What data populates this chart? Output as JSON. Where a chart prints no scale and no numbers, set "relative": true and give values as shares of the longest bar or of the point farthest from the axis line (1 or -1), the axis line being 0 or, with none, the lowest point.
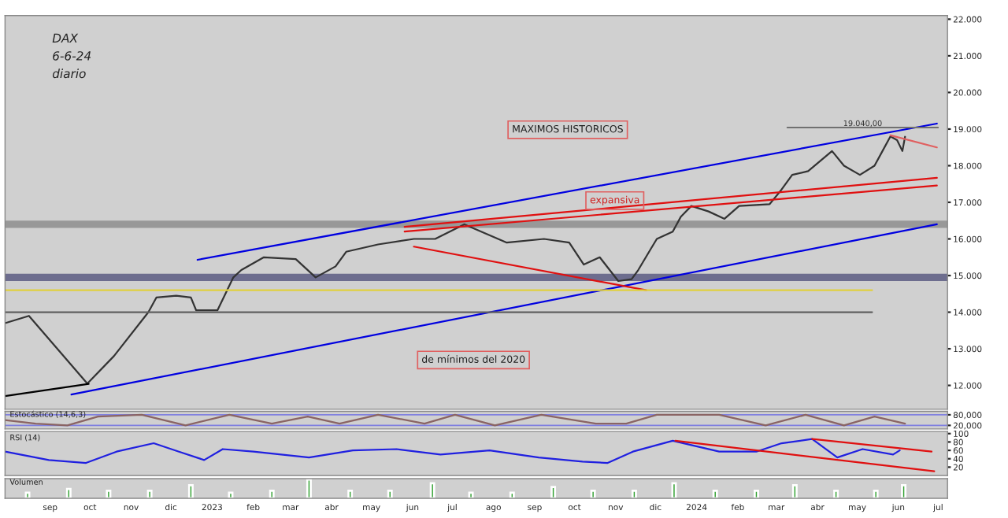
{
  "chart_data": [
    {
      "type": "line",
      "xlim": [
        "2022-07-29",
        "2024-07-08"
      ],
      "ylim": [
        11350,
        22100
      ],
      "yticks": [
        {
          "value": 12000,
          "label": "12.000"
        },
        {
          "value": 13000,
          "label": "13.000"
        },
        {
          "value": 14000,
          "label": "14.000"
        },
        {
          "value": 15000,
          "label": "15.000"
        },
        {
          "value": 16000,
          "label": "16.000"
        },
        {
          "value": 17000,
          "label": "17.000"
        },
        {
          "value": 18000,
          "label": "18.000"
        },
        {
          "value": 19000,
          "label": "19.000"
        },
        {
          "value": 20000,
          "label": "20.000"
        },
        {
          "value": 21000,
          "label": "21.000"
        },
        {
          "value": 22000,
          "label": "22.000"
        }
      ],
      "tick_labels": "y",
      "grid": false,
      "legend": false,
      "series": [
        {
          "color": "#333333",
          "x": [
            "2022-07-29",
            "2022-08-16",
            "2022-09-29",
            "2022-10-19",
            "2022-11-14",
            "2022-11-20",
            "2022-12-05",
            "2022-12-16",
            "2022-12-20",
            "2023-01-05",
            "2023-01-17",
            "2023-01-23",
            "2023-02-09",
            "2023-03-05",
            "2023-03-20",
            "2023-04-04",
            "2023-04-12",
            "2023-05-06",
            "2023-06-02",
            "2023-06-18",
            "2023-07-10",
            "2023-08-11",
            "2023-09-08",
            "2023-09-27",
            "2023-10-08",
            "2023-10-20",
            "2023-11-03",
            "2023-11-13",
            "2023-11-18",
            "2023-11-27",
            "2023-12-02",
            "2023-12-14",
            "2023-12-20",
            "2023-12-28",
            "2024-01-10",
            "2024-01-22",
            "2024-02-02",
            "2024-02-25",
            "2024-03-05",
            "2024-03-13",
            "2024-03-25",
            "2024-04-12",
            "2024-04-21",
            "2024-05-03",
            "2024-05-14",
            "2024-05-20",
            "2024-05-26",
            "2024-05-31",
            "2024-06-04",
            "2024-06-06"
          ],
          "values": [
            13700,
            13900,
            12050,
            12800,
            14000,
            14400,
            14450,
            14400,
            14050,
            14050,
            14950,
            15150,
            15500,
            15450,
            14950,
            15250,
            15650,
            15850,
            16000,
            16000,
            16400,
            15900,
            16000,
            15900,
            15300,
            15500,
            14850,
            14900,
            15150,
            15700,
            16000,
            16200,
            16600,
            16900,
            16750,
            16550,
            16900,
            16950,
            17350,
            17750,
            17850,
            18400,
            18000,
            17750,
            18000,
            18400,
            18800,
            18700,
            18400,
            18790
          ]
        },
        {
          "color": "#0000e0",
          "x": [
            "2022-12-21",
            "2024-06-30"
          ],
          "values": [
            15430,
            19150
          ]
        },
        {
          "color": "#0000e0",
          "x": [
            "2022-09-17",
            "2024-06-30"
          ],
          "values": [
            11750,
            16400
          ]
        },
        {
          "color": "#e01010",
          "x": [
            "2023-05-26",
            "2024-06-30"
          ],
          "values": [
            16330,
            17670
          ]
        },
        {
          "color": "#e01010",
          "x": [
            "2023-05-26",
            "2024-06-30"
          ],
          "values": [
            16200,
            17460
          ]
        },
        {
          "color": "#e01010",
          "x": [
            "2023-06-02",
            "2023-11-24"
          ],
          "values": [
            15790,
            14600
          ]
        },
        {
          "color": "#000000",
          "x": [
            "2022-07-29",
            "2022-09-30"
          ],
          "values": [
            11710,
            12040
          ]
        },
        {
          "color": "#e06060",
          "x": [
            "2024-05-26",
            "2024-06-30"
          ],
          "values": [
            18830,
            18500
          ]
        }
      ],
      "ref_lines": [
        {
          "axis": "y",
          "value": 19040,
          "label": "19.040,00",
          "color": "#707070"
        },
        {
          "axis": "y",
          "value": 14000,
          "color": "#606060"
        },
        {
          "axis": "y",
          "value": 14600,
          "color": "#e0d040"
        }
      ],
      "bands": [
        {
          "axis": "y",
          "from": 16300,
          "to": 16500,
          "color": "#8e8e8e"
        },
        {
          "axis": "y",
          "from": 14850,
          "to": 15050,
          "color": "#5c5c82"
        }
      ],
      "annotations": [
        "DAX",
        "6-6-24",
        "diario",
        "MAXIMOS HISTORICOS",
        "expansiva",
        "de mínimos del 2020"
      ]
    },
    {
      "type": "line",
      "xlim": [
        "2022-07-29",
        "2024-07-08"
      ],
      "ylim": [
        0,
        100
      ],
      "yticks": [
        {
          "value": 80,
          "label": "80,000"
        },
        {
          "value": 20,
          "label": "20,000"
        }
      ],
      "tick_labels": "y",
      "grid": "y",
      "legend": false,
      "series": [
        {
          "color": "#8a6464",
          "x": [
            "2022-07-29",
            "2022-08-21",
            "2022-09-14",
            "2022-10-07",
            "2022-11-09",
            "2022-12-12",
            "2023-01-14",
            "2023-02-15",
            "2023-03-14",
            "2023-04-07",
            "2023-05-06",
            "2023-06-10",
            "2023-07-03",
            "2023-08-02",
            "2023-09-06",
            "2023-10-17",
            "2023-11-09",
            "2023-12-02",
            "2024-01-18",
            "2024-02-22",
            "2024-03-23",
            "2024-04-21",
            "2024-05-14",
            "2024-06-06"
          ],
          "values": [
            50,
            30,
            20,
            70,
            80,
            20,
            80,
            30,
            70,
            30,
            80,
            30,
            80,
            20,
            80,
            30,
            30,
            80,
            80,
            20,
            80,
            20,
            70,
            30
          ]
        }
      ],
      "annotations": [
        "Estocástico (14,6,3)"
      ]
    },
    {
      "type": "line",
      "xlim": [
        "2022-07-29",
        "2024-07-08"
      ],
      "ylim": [
        0,
        105
      ],
      "yticks": [
        20,
        40,
        60,
        80,
        100
      ],
      "tick_labels": "y",
      "grid": false,
      "legend": false,
      "series": [
        {
          "color": "#2020e0",
          "x": [
            "2022-07-29",
            "2022-08-31",
            "2022-09-28",
            "2022-10-21",
            "2022-11-18",
            "2022-12-07",
            "2022-12-26",
            "2023-01-09",
            "2023-02-01",
            "2023-03-15",
            "2023-04-17",
            "2023-05-20",
            "2023-06-22",
            "2023-07-29",
            "2023-09-04",
            "2023-10-07",
            "2023-10-26",
            "2023-11-14",
            "2023-12-14",
            "2024-01-18",
            "2024-02-15",
            "2024-03-05",
            "2024-03-28",
            "2024-04-16",
            "2024-05-05",
            "2024-05-28",
            "2024-06-02"
          ],
          "values": [
            57,
            37,
            30,
            57,
            77,
            57,
            37,
            63,
            57,
            43,
            60,
            63,
            50,
            60,
            43,
            33,
            30,
            57,
            83,
            57,
            57,
            77,
            87,
            43,
            63,
            50,
            60
          ]
        },
        {
          "color": "#e01010",
          "x": [
            "2023-12-16",
            "2024-06-28"
          ],
          "values": [
            83,
            10
          ]
        },
        {
          "color": "#e01010",
          "x": [
            "2024-03-28",
            "2024-06-26"
          ],
          "values": [
            87,
            57
          ]
        }
      ],
      "annotations": [
        "RSI (14)"
      ]
    },
    {
      "type": "bar",
      "relative": true,
      "xlim": [
        "2022-07-29",
        "2024-07-08"
      ],
      "tick_labels": "x",
      "grid": false,
      "legend": false,
      "xticks": [
        {
          "value": "2022-09-01",
          "label": "sep"
        },
        {
          "value": "2022-10-01",
          "label": "oct"
        },
        {
          "value": "2022-11-01",
          "label": "nov"
        },
        {
          "value": "2022-12-01",
          "label": "dic"
        },
        {
          "value": "2023-01-01",
          "label": "2023"
        },
        {
          "value": "2023-02-01",
          "label": "feb"
        },
        {
          "value": "2023-03-01",
          "label": "mar"
        },
        {
          "value": "2023-04-01",
          "label": "abr"
        },
        {
          "value": "2023-05-01",
          "label": "may"
        },
        {
          "value": "2023-06-01",
          "label": "jun"
        },
        {
          "value": "2023-07-01",
          "label": "jul"
        },
        {
          "value": "2023-08-01",
          "label": "ago"
        },
        {
          "value": "2023-09-01",
          "label": "sep"
        },
        {
          "value": "2023-10-01",
          "label": "oct"
        },
        {
          "value": "2023-11-01",
          "label": "nov"
        },
        {
          "value": "2023-12-01",
          "label": "dic"
        },
        {
          "value": "2024-01-01",
          "label": "2024"
        },
        {
          "value": "2024-02-01",
          "label": "feb"
        },
        {
          "value": "2024-03-01",
          "label": "mar"
        },
        {
          "value": "2024-04-01",
          "label": "abr"
        },
        {
          "value": "2024-05-01",
          "label": "may"
        },
        {
          "value": "2024-06-01",
          "label": "jun"
        },
        {
          "value": "2024-07-01",
          "label": "jul"
        }
      ],
      "series": [
        {
          "color": "#30a030",
          "x": [
            "2022-08-15",
            "2022-09-15",
            "2022-10-15",
            "2022-11-15",
            "2022-12-16",
            "2023-01-15",
            "2023-02-15",
            "2023-03-15",
            "2023-04-15",
            "2023-05-15",
            "2023-06-16",
            "2023-07-15",
            "2023-08-15",
            "2023-09-15",
            "2023-10-15",
            "2023-11-15",
            "2023-12-15",
            "2024-01-15",
            "2024-02-15",
            "2024-03-15",
            "2024-04-15",
            "2024-05-15",
            "2024-06-05"
          ],
          "values": [
            0.3,
            0.5,
            0.4,
            0.4,
            0.7,
            0.3,
            0.4,
            1,
            0.4,
            0.4,
            0.8,
            0.3,
            0.3,
            0.6,
            0.4,
            0.4,
            0.8,
            0.4,
            0.4,
            0.7,
            0.4,
            0.4,
            0.7
          ]
        }
      ],
      "annotations": [
        "Volumen"
      ]
    }
  ]
}
